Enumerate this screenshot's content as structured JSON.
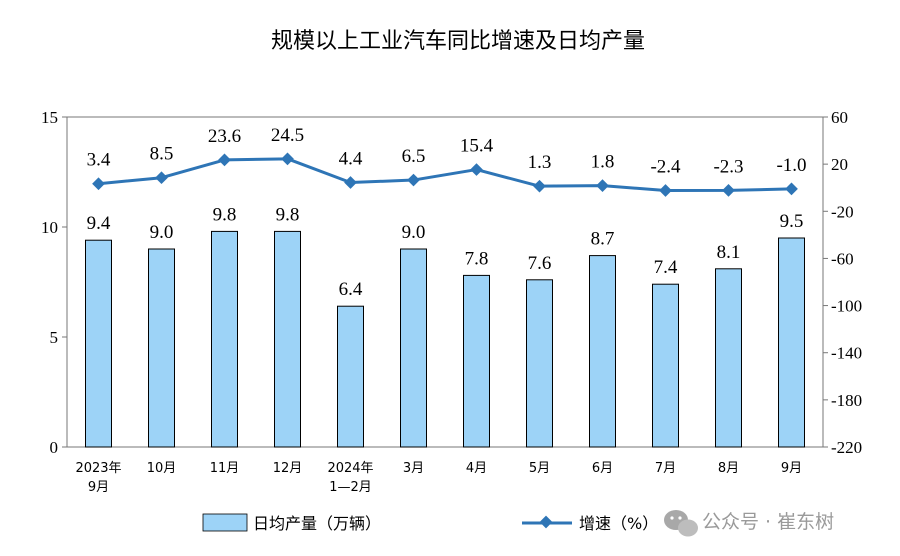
{
  "chart_data": {
    "type": "bar",
    "title": "规模以上工业汽车同比增速及日均产量",
    "categories": [
      [
        "2023年",
        "9月"
      ],
      [
        "10月"
      ],
      [
        "11月"
      ],
      [
        "12月"
      ],
      [
        "2024年",
        "1—2月"
      ],
      [
        "3月"
      ],
      [
        "4月"
      ],
      [
        "5月"
      ],
      [
        "6月"
      ],
      [
        "7月"
      ],
      [
        "8月"
      ],
      [
        "9月"
      ]
    ],
    "series": [
      {
        "name": "日均产量（万辆）",
        "type": "bar",
        "axis": "left",
        "values": [
          9.4,
          9.0,
          9.8,
          9.8,
          6.4,
          9.0,
          7.8,
          7.6,
          8.7,
          7.4,
          8.1,
          9.5
        ],
        "labels": [
          "9.4",
          "9.0",
          "9.8",
          "9.8",
          "6.4",
          "9.0",
          "7.8",
          "7.6",
          "8.7",
          "7.4",
          "8.1",
          "9.5"
        ],
        "color": "#9dd3f7"
      },
      {
        "name": "增速（%）",
        "type": "line",
        "axis": "right",
        "values": [
          3.4,
          8.5,
          23.6,
          24.5,
          4.4,
          6.5,
          15.4,
          1.3,
          1.8,
          -2.4,
          -2.3,
          -1.0
        ],
        "labels": [
          "3.4",
          "8.5",
          "23.6",
          "24.5",
          "4.4",
          "6.5",
          "15.4",
          "1.3",
          "1.8",
          "-2.4",
          "-2.3",
          "-1.0"
        ],
        "color": "#2e75b6"
      }
    ],
    "y_left": {
      "range": [
        0,
        15
      ],
      "ticks": [
        "0",
        "5",
        "10",
        "15"
      ]
    },
    "y_right": {
      "range": [
        -220,
        60
      ],
      "ticks": [
        "-220",
        "-180",
        "-140",
        "-100",
        "-60",
        "-20",
        "20",
        "60"
      ]
    },
    "legend_position": "bottom"
  },
  "watermark": "公众号 · 崔东树"
}
